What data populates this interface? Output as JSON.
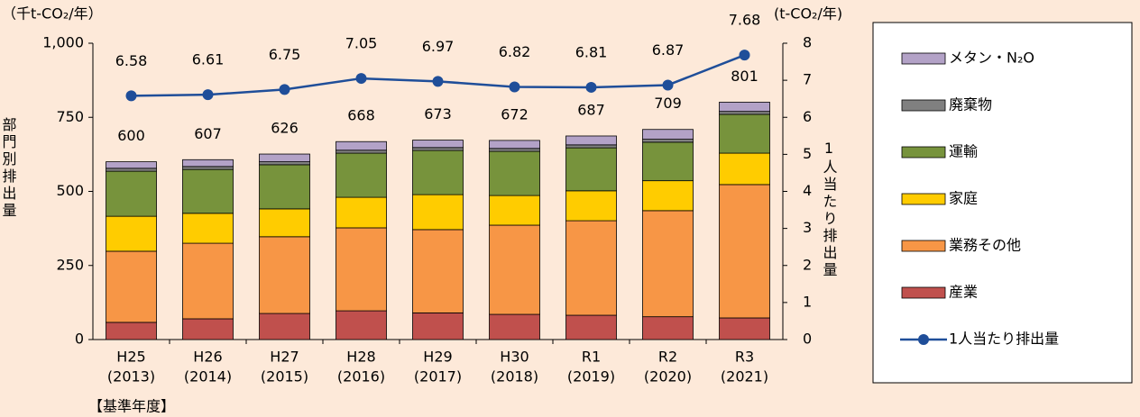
{
  "chart_data": {
    "type": "bar_line",
    "y_unit_label": "（千t-CO₂/年）",
    "y2_unit_label": "(t-CO₂/年)",
    "ylabel": "部門別排出量",
    "y2label": "1人当たり排出量",
    "annotation": "【基準年度】",
    "categories": [
      "H25",
      "H26",
      "H27",
      "H28",
      "H29",
      "H30",
      "R1",
      "R2",
      "R3"
    ],
    "category_years": [
      "(2013)",
      "(2014)",
      "(2015)",
      "(2016)",
      "(2017)",
      "(2018)",
      "(2019)",
      "(2020)",
      "(2021)"
    ],
    "ylim": [
      0,
      1000
    ],
    "yticks": [
      0,
      250,
      500,
      750,
      {
        "value": 1000,
        "label": "1,000"
      }
    ],
    "y2lim": [
      0,
      8
    ],
    "y2ticks": [
      0,
      1,
      2,
      3,
      4,
      5,
      6,
      7,
      8
    ],
    "series": [
      {
        "name": "産業",
        "color": "#c0504d",
        "values": [
          58,
          70,
          88,
          97,
          90,
          85,
          82,
          77,
          73
        ]
      },
      {
        "name": "業務その他",
        "color": "#f79646",
        "values": [
          240,
          255,
          259,
          280,
          281,
          301,
          319,
          358,
          450
        ]
      },
      {
        "name": "家庭",
        "color": "#ffcc00",
        "values": [
          118,
          101,
          94,
          103,
          118,
          100,
          101,
          101,
          106
        ]
      },
      {
        "name": "運輸",
        "color": "#77933c",
        "values": [
          152,
          148,
          149,
          149,
          149,
          149,
          145,
          130,
          131
        ]
      },
      {
        "name": "廃棄物",
        "color": "#808080",
        "values": [
          10,
          10,
          10,
          10,
          10,
          10,
          10,
          10,
          10
        ]
      },
      {
        "name": "メタン・N₂O",
        "color": "#b3a2c7",
        "values": [
          22,
          23,
          26,
          29,
          25,
          27,
          30,
          33,
          31
        ]
      },
      {
        "name": "1人当たり排出量",
        "color": "#1f4e99",
        "axis": "y2",
        "type": "line",
        "values": [
          6.58,
          6.61,
          6.75,
          7.05,
          6.97,
          6.82,
          6.81,
          6.87,
          7.68
        ]
      }
    ],
    "totals": [
      600,
      607,
      626,
      668,
      673,
      672,
      687,
      709,
      801
    ]
  }
}
